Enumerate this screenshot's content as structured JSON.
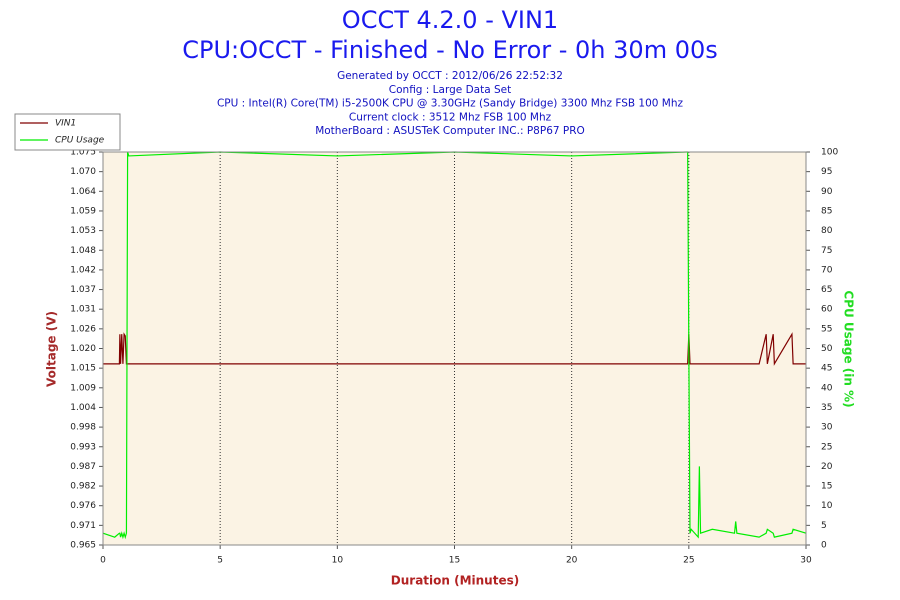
{
  "chart_data": {
    "type": "line",
    "title": "OCCT 4.2.0 - VIN1",
    "subtitle": "CPU:OCCT - Finished - No Error - 0h 30m 00s",
    "info": [
      "Generated by OCCT : 2012/06/26 22:52:32",
      "Config : Large Data Set",
      "CPU : Intel(R) Core(TM) i5-2500K CPU @ 3.30GHz (Sandy Bridge) 3300 Mhz FSB 100 Mhz",
      "Current clock : 3512 Mhz FSB 100 Mhz",
      "MotherBoard : ASUSTeK Computer INC.: P8P67 PRO"
    ],
    "x_label": "Duration (Minutes)",
    "y_label": "Voltage (V)",
    "y2_label": "CPU Usage (in %)",
    "x": [
      0,
      0.5,
      0.7,
      0.72,
      0.75,
      0.8,
      0.85,
      0.9,
      0.95,
      1.0,
      1.05,
      1.1,
      5,
      10,
      15,
      20,
      24.9,
      24.95,
      25.0,
      25.05,
      25.1,
      25.4,
      25.45,
      25.5,
      26,
      26.95,
      27.0,
      27.05,
      28,
      28.3,
      28.35,
      28.6,
      28.65,
      29.4,
      29.45,
      30
    ],
    "series": [
      {
        "name": "VIN1",
        "color": "#800000",
        "values": [
          1.0157,
          1.0157,
          1.0157,
          1.024,
          1.0157,
          1.024,
          1.0157,
          1.024,
          1.0235,
          1.0157,
          1.0157,
          1.0157,
          1.0157,
          1.0157,
          1.0157,
          1.0157,
          1.0157,
          1.0157,
          1.024,
          1.0157,
          1.0157,
          1.0157,
          1.0157,
          1.0157,
          1.0157,
          1.0157,
          1.0157,
          1.0157,
          1.0157,
          1.024,
          1.0157,
          1.024,
          1.0157,
          1.024,
          1.0157,
          1.0157
        ]
      },
      {
        "name": "CPU Usage",
        "color": "#00ee00",
        "axis": "y2",
        "values": [
          3,
          2,
          3,
          3,
          2,
          3,
          2,
          3,
          2,
          3,
          100,
          99,
          100,
          99,
          100,
          99,
          100,
          100,
          50,
          3,
          4,
          2,
          20,
          3,
          4,
          3,
          6,
          3,
          2,
          3,
          4,
          3,
          2,
          3,
          4,
          3
        ]
      }
    ],
    "xlim": [
      0,
      30
    ],
    "xticks": [
      0,
      5,
      10,
      15,
      20,
      25,
      30
    ],
    "ylim": [
      0.965,
      1.075
    ],
    "yticks": [
      {
        "value": 0.965,
        "label": "0.965"
      },
      {
        "value": 0.9705,
        "label": "0.971"
      },
      {
        "value": 0.976,
        "label": "0.976"
      },
      {
        "value": 0.9815,
        "label": "0.982"
      },
      {
        "value": 0.987,
        "label": "0.987"
      },
      {
        "value": 0.9925,
        "label": "0.993"
      },
      {
        "value": 0.998,
        "label": "0.998"
      },
      {
        "value": 1.0035,
        "label": "1.004"
      },
      {
        "value": 1.009,
        "label": "1.009"
      },
      {
        "value": 1.0145,
        "label": "1.015"
      },
      {
        "value": 1.02,
        "label": "1.020"
      },
      {
        "value": 1.0255,
        "label": "1.026"
      },
      {
        "value": 1.031,
        "label": "1.031"
      },
      {
        "value": 1.0365,
        "label": "1.037"
      },
      {
        "value": 1.042,
        "label": "1.042"
      },
      {
        "value": 1.0475,
        "label": "1.048"
      },
      {
        "value": 1.053,
        "label": "1.053"
      },
      {
        "value": 1.0585,
        "label": "1.059"
      },
      {
        "value": 1.064,
        "label": "1.064"
      },
      {
        "value": 1.0695,
        "label": "1.070"
      },
      {
        "value": 1.075,
        "label": "1.075"
      }
    ],
    "y2lim": [
      0,
      100
    ],
    "y2ticks": [
      0,
      5,
      10,
      15,
      20,
      25,
      30,
      35,
      40,
      45,
      50,
      55,
      60,
      65,
      70,
      75,
      80,
      85,
      90,
      95,
      100
    ],
    "grid": true,
    "legend": "top-left"
  }
}
